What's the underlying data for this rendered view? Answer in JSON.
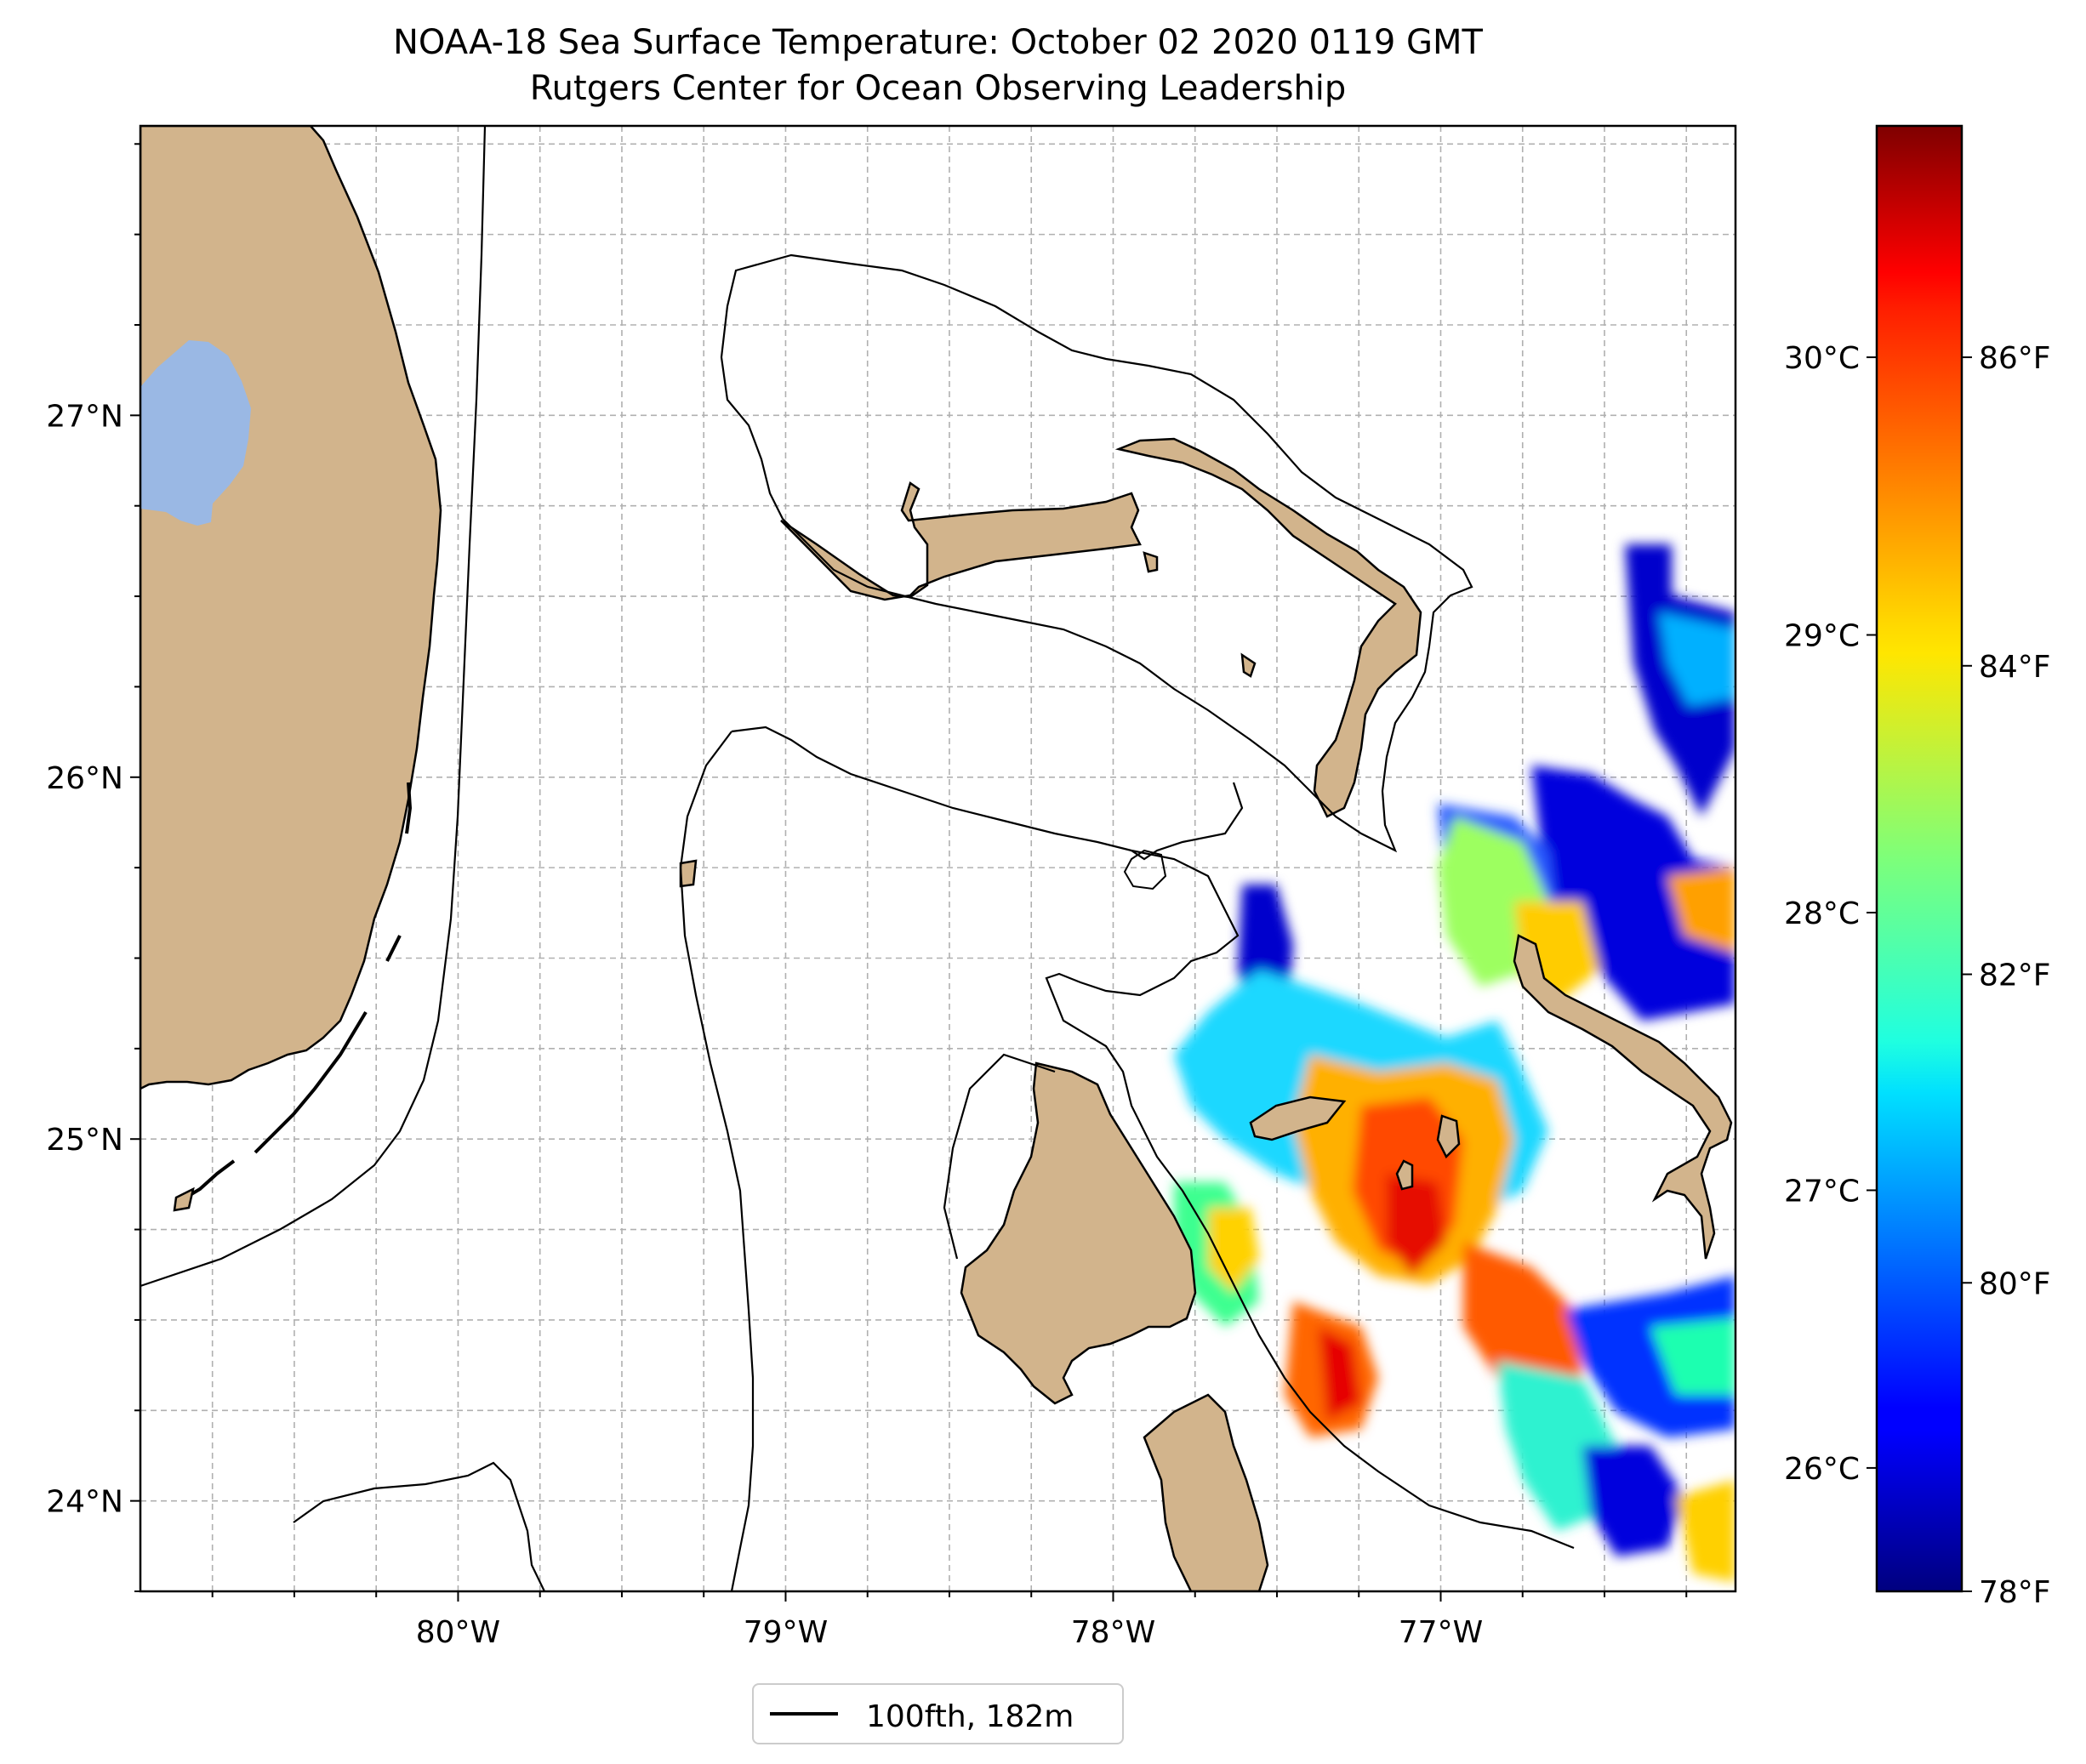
{
  "title": "NOAA-18 Sea Surface Temperature: October 02 2020 0119 GMT",
  "subtitle": "Rutgers Center for Ocean Observing Leadership",
  "map": {
    "lon_range": [
      -80.97,
      -76.1
    ],
    "lat_range": [
      23.75,
      27.8
    ],
    "lon_ticks": [
      "80°W",
      "79°W",
      "78°W",
      "77°W"
    ],
    "lat_ticks": [
      "24°N",
      "25°N",
      "26°N",
      "27°N"
    ],
    "grid": "dashed",
    "colors": {
      "land": "#d2b48c",
      "lake": "#9ab8e4",
      "coastline": "#000000",
      "grid": "#b0b0b0"
    }
  },
  "legend": {
    "label": "100fth, 182m",
    "placement": "bottom-center"
  },
  "colorbar": {
    "colormap": "jet",
    "celsius_ticks": [
      "26°C",
      "27°C",
      "28°C",
      "29°C",
      "30°C"
    ],
    "fahrenheit_ticks": [
      "78°F",
      "80°F",
      "82°F",
      "84°F",
      "86°F"
    ],
    "range_f": [
      78,
      87.5
    ]
  }
}
